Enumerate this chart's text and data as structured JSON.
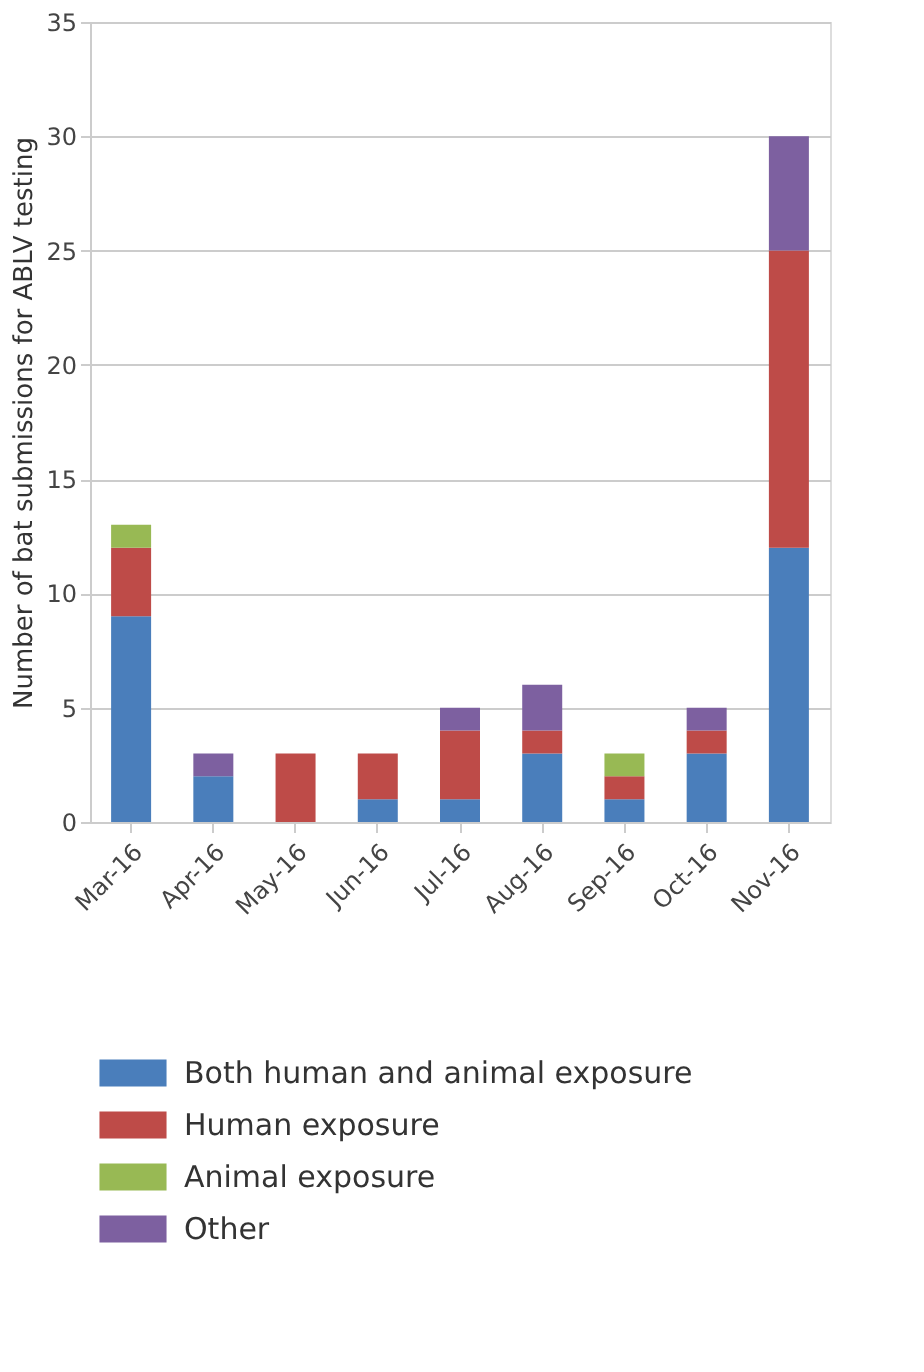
{
  "chart_data": {
    "type": "bar",
    "stacked": true,
    "ylabel": "Number of bat submissions for ABLV testing",
    "categories": [
      "Mar-16",
      "Apr-16",
      "May-16",
      "Jun-16",
      "Jul-16",
      "Aug-16",
      "Sep-16",
      "Oct-16",
      "Nov-16"
    ],
    "series": [
      {
        "name": "Both human and animal exposure",
        "color": "#4a7ebb",
        "values": [
          9,
          2,
          0,
          1,
          1,
          3,
          1,
          3,
          12
        ]
      },
      {
        "name": "Human exposure",
        "color": "#be4b48",
        "values": [
          3,
          0,
          3,
          2,
          3,
          1,
          1,
          1,
          13
        ]
      },
      {
        "name": "Animal exposure",
        "color": "#98b954",
        "values": [
          1,
          0,
          0,
          0,
          0,
          0,
          1,
          0,
          0
        ]
      },
      {
        "name": "Other",
        "color": "#7d60a0",
        "values": [
          0,
          1,
          0,
          0,
          1,
          2,
          0,
          1,
          5
        ]
      }
    ],
    "ylim": [
      0,
      35
    ],
    "yticks": [
      0,
      5,
      10,
      15,
      20,
      25,
      30,
      35
    ],
    "grid": "y",
    "legend": "bottom"
  }
}
